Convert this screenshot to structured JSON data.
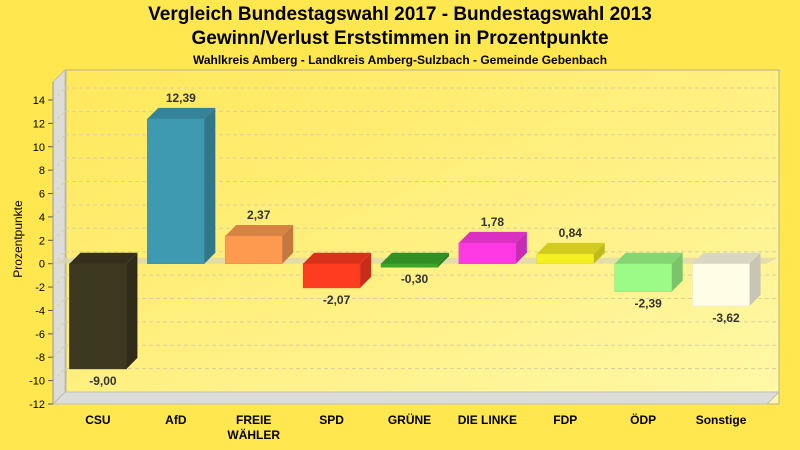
{
  "chart_data": {
    "type": "bar",
    "title": "Vergleich Bundestagswahl 2017 - Bundestagswahl 2013",
    "subtitle": "Gewinn/Verlust Erststimmen in Prozentpunkte",
    "subtitle2": "Wahlkreis Amberg - Landkreis Amberg-Sulzbach - Gemeinde Gebenbach",
    "xlabel": "",
    "ylabel": "Prozentpunkte",
    "ylim": [
      -12,
      14
    ],
    "yticks": [
      14,
      12,
      10,
      8,
      6,
      4,
      2,
      0,
      -2,
      -4,
      -6,
      -8,
      -10,
      -12
    ],
    "grid": true,
    "categories": [
      "CSU",
      "AfD",
      "FREIE WÄHLER",
      "SPD",
      "GRÜNE",
      "DIE LINKE",
      "FDP",
      "ÖDP",
      "Sonstige"
    ],
    "category_lines": [
      [
        "CSU"
      ],
      [
        "AfD"
      ],
      [
        "FREIE",
        "WÄHLER"
      ],
      [
        "SPD"
      ],
      [
        "GRÜNE"
      ],
      [
        "DIE LINKE"
      ],
      [
        "FDP"
      ],
      [
        "ÖDP"
      ],
      [
        "Sonstige"
      ]
    ],
    "values": [
      -9.0,
      12.39,
      2.37,
      -2.07,
      -0.3,
      1.78,
      0.84,
      -2.39,
      -3.62
    ],
    "value_labels": [
      "-9,00",
      "12,39",
      "2,37",
      "-2,07",
      "-0,30",
      "1,78",
      "0,84",
      "-2,39",
      "-3,62"
    ],
    "colors": [
      "#3d3920",
      "#3d9ab0",
      "#fd9a50",
      "#ff3b20",
      "#3aa82a",
      "#ff3ae4",
      "#f6f023",
      "#9cfb86",
      "#fffde6"
    ]
  }
}
